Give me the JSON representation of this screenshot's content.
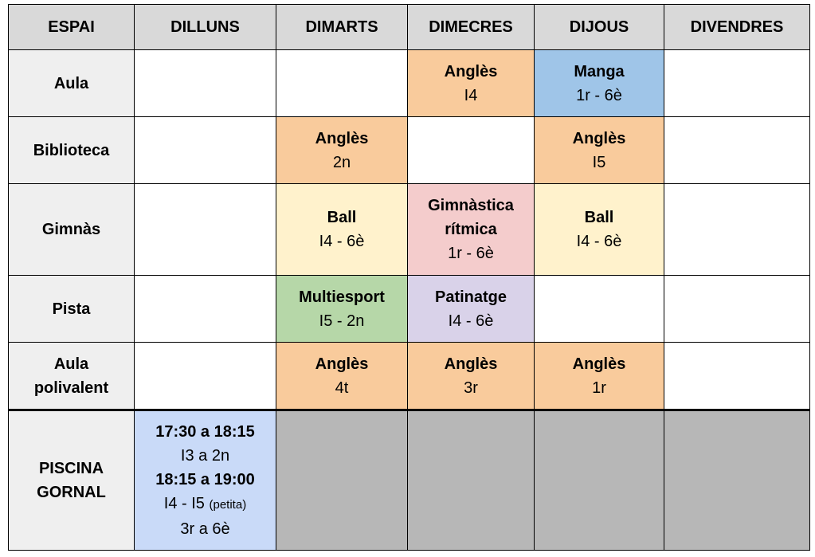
{
  "colors": {
    "header": "#d9d9d9",
    "space_column": "#efefef",
    "orange": "#f9cb9c",
    "blue": "#9fc5e8",
    "yellow": "#fff2cc",
    "pink": "#f4cccc",
    "green": "#b6d7a8",
    "purple": "#d9d2e9",
    "light_blue": "#c9daf8",
    "gray": "#b7b7b7"
  },
  "headers": [
    "ESPAI",
    "DILLUNS",
    "DIMARTS",
    "DIMECRES",
    "DIJOUS",
    "DIVENDRES"
  ],
  "rows": [
    {
      "space": [
        "Aula"
      ],
      "cells": [
        {
          "color": "",
          "lines": []
        },
        {
          "color": "",
          "lines": []
        },
        {
          "color": "orange",
          "lines": [
            {
              "t": "Anglès",
              "b": true
            },
            {
              "t": "I4"
            }
          ]
        },
        {
          "color": "blue",
          "lines": [
            {
              "t": "Manga",
              "b": true
            },
            {
              "t": "1r - 6è"
            }
          ]
        },
        {
          "color": "",
          "lines": []
        }
      ]
    },
    {
      "space": [
        "Biblioteca"
      ],
      "cells": [
        {
          "color": "",
          "lines": []
        },
        {
          "color": "orange",
          "lines": [
            {
              "t": "Anglès",
              "b": true
            },
            {
              "t": "2n"
            }
          ]
        },
        {
          "color": "",
          "lines": []
        },
        {
          "color": "orange",
          "lines": [
            {
              "t": "Anglès",
              "b": true
            },
            {
              "t": "I5"
            }
          ]
        },
        {
          "color": "",
          "lines": []
        }
      ]
    },
    {
      "space": [
        "Gimnàs"
      ],
      "cells": [
        {
          "color": "",
          "lines": []
        },
        {
          "color": "yellow",
          "lines": [
            {
              "t": "Ball",
              "b": true
            },
            {
              "t": "I4 - 6è"
            }
          ]
        },
        {
          "color": "pink",
          "lines": [
            {
              "t": "Gimnàstica",
              "b": true
            },
            {
              "t": "rítmica",
              "b": true
            },
            {
              "t": "1r - 6è"
            }
          ]
        },
        {
          "color": "yellow",
          "lines": [
            {
              "t": "Ball",
              "b": true
            },
            {
              "t": "I4 - 6è"
            }
          ]
        },
        {
          "color": "",
          "lines": []
        }
      ]
    },
    {
      "space": [
        "Pista"
      ],
      "cells": [
        {
          "color": "",
          "lines": []
        },
        {
          "color": "green",
          "lines": [
            {
              "t": "Multiesport",
              "b": true
            },
            {
              "t": "I5 - 2n"
            }
          ]
        },
        {
          "color": "purple",
          "lines": [
            {
              "t": "Patinatge",
              "b": true
            },
            {
              "t": "I4 - 6è"
            }
          ]
        },
        {
          "color": "",
          "lines": []
        },
        {
          "color": "",
          "lines": []
        }
      ]
    },
    {
      "space": [
        "Aula",
        "polivalent"
      ],
      "cells": [
        {
          "color": "",
          "lines": []
        },
        {
          "color": "orange",
          "lines": [
            {
              "t": "Anglès",
              "b": true
            },
            {
              "t": "4t"
            }
          ]
        },
        {
          "color": "orange",
          "lines": [
            {
              "t": "Anglès",
              "b": true
            },
            {
              "t": "3r"
            }
          ]
        },
        {
          "color": "orange",
          "lines": [
            {
              "t": "Anglès",
              "b": true
            },
            {
              "t": "1r"
            }
          ]
        },
        {
          "color": "",
          "lines": []
        }
      ]
    },
    {
      "space": [
        "PISCINA",
        "GORNAL"
      ],
      "cells": [
        {
          "color": "light_blue",
          "lines": [
            {
              "t": "17:30 a 18:15",
              "b": true
            },
            {
              "t": "I3 a 2n"
            },
            {
              "t": "18:15 a 19:00",
              "b": true
            },
            {
              "t": "I4 - I5",
              "small": "(petita)"
            },
            {
              "t": "3r a 6è"
            }
          ]
        },
        {
          "color": "gray",
          "lines": []
        },
        {
          "color": "gray",
          "lines": []
        },
        {
          "color": "gray",
          "lines": []
        },
        {
          "color": "gray",
          "lines": []
        }
      ]
    }
  ]
}
